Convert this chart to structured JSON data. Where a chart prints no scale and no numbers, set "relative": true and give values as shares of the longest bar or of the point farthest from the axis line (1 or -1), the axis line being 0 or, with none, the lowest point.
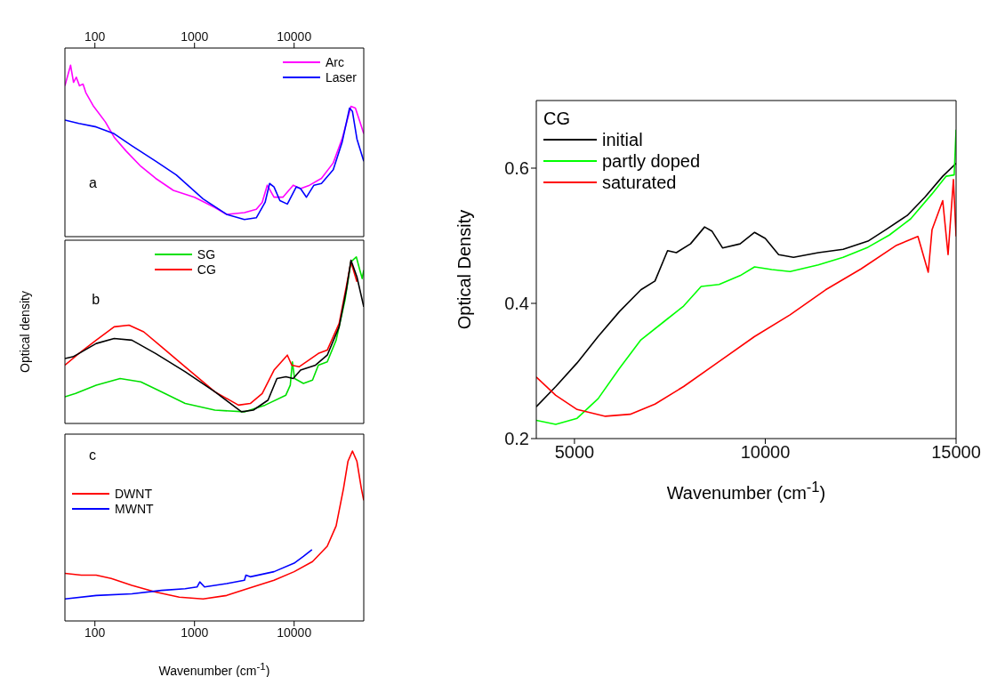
{
  "chart_data": [
    {
      "type": "line",
      "relative": true,
      "log": "x",
      "xlim": [
        50,
        50000
      ],
      "xticks": [
        100,
        1000,
        10000
      ],
      "tick_labels": "x",
      "legend": "top right",
      "annotations": [
        "a"
      ],
      "series": [
        {
          "name": "Arc",
          "color": "#ff00ff",
          "x": [
            50,
            57,
            61,
            65,
            70,
            76,
            81,
            97,
            127,
            156,
            205,
            289,
            407,
            613,
            1000,
            1600,
            2100,
            3170,
            4170,
            4780,
            5370,
            6280,
            7710,
            9790,
            11600,
            14300,
            18800,
            24700,
            30300,
            37200,
            41200,
            45700,
            50000
          ],
          "values": [
            0.88,
            1.0,
            0.9,
            0.93,
            0.88,
            0.89,
            0.84,
            0.76,
            0.67,
            0.58,
            0.5,
            0.41,
            0.34,
            0.27,
            0.23,
            0.17,
            0.13,
            0.14,
            0.16,
            0.2,
            0.3,
            0.23,
            0.23,
            0.3,
            0.28,
            0.3,
            0.34,
            0.43,
            0.57,
            0.76,
            0.75,
            0.67,
            0.6
          ]
        },
        {
          "name": "Laser",
          "color": "#0000ff",
          "x": [
            50,
            69,
            103,
            156,
            235,
            407,
            656,
            1220,
            2100,
            3170,
            4170,
            5110,
            5670,
            6280,
            7200,
            8550,
            10500,
            11600,
            13300,
            15800,
            18800,
            24700,
            30300,
            36000,
            38500,
            42700,
            50000
          ],
          "values": [
            0.68,
            0.66,
            0.64,
            0.6,
            0.53,
            0.44,
            0.36,
            0.22,
            0.13,
            0.1,
            0.11,
            0.2,
            0.31,
            0.29,
            0.21,
            0.19,
            0.29,
            0.28,
            0.23,
            0.3,
            0.31,
            0.39,
            0.55,
            0.75,
            0.73,
            0.57,
            0.44
          ]
        }
      ]
    },
    {
      "type": "line",
      "relative": true,
      "log": "x",
      "xlim": [
        50,
        50000
      ],
      "xticks": [
        100,
        1000,
        10000
      ],
      "tick_labels": false,
      "legend": "top",
      "ylabel": "Optical density",
      "annotations": [
        "b"
      ],
      "series": [
        {
          "name": "SG",
          "color": "#00e000",
          "x": [
            50,
            64,
            103,
            179,
            289,
            467,
            806,
            1600,
            3170,
            5110,
            8260,
            9150,
            9600,
            10100,
            12400,
            15300,
            17500,
            21500,
            26400,
            32400,
            37200,
            42100,
            45700,
            48200,
            50000
          ],
          "values": [
            0.16,
            0.18,
            0.23,
            0.27,
            0.25,
            0.19,
            0.12,
            0.08,
            0.07,
            0.11,
            0.17,
            0.23,
            0.37,
            0.27,
            0.24,
            0.26,
            0.35,
            0.37,
            0.5,
            0.74,
            0.97,
            1.0,
            0.92,
            0.87,
            0.92
          ]
        },
        {
          "name": "CG",
          "color": "#ff0000",
          "x": [
            50,
            69,
            103,
            156,
            220,
            309,
            467,
            806,
            1600,
            2760,
            3630,
            4780,
            6280,
            7450,
            8550,
            9470,
            11200,
            13300,
            17500,
            21500,
            28300,
            33600,
            37200,
            42700
          ],
          "values": [
            0.35,
            0.42,
            0.5,
            0.58,
            0.59,
            0.55,
            0.46,
            0.34,
            0.19,
            0.11,
            0.12,
            0.18,
            0.32,
            0.37,
            0.41,
            0.35,
            0.34,
            0.37,
            0.42,
            0.44,
            0.6,
            0.83,
            0.97,
            0.85
          ]
        },
        {
          "color": "#000000",
          "x": [
            50,
            60,
            69,
            103,
            156,
            235,
            407,
            806,
            1600,
            2960,
            3890,
            5470,
            6720,
            8260,
            9790,
            11600,
            16400,
            21500,
            28300,
            33600,
            37200,
            42700,
            50000
          ],
          "values": [
            0.39,
            0.4,
            0.42,
            0.48,
            0.51,
            0.5,
            0.42,
            0.31,
            0.19,
            0.07,
            0.08,
            0.14,
            0.27,
            0.28,
            0.27,
            0.32,
            0.35,
            0.41,
            0.58,
            0.81,
            0.98,
            0.88,
            0.7
          ]
        }
      ]
    },
    {
      "type": "line",
      "relative": true,
      "log": "x",
      "xlim": [
        50,
        50000
      ],
      "xticks": [
        100,
        1000,
        10000
      ],
      "tick_labels": "x",
      "legend": "left",
      "xlabel": "Wavenumber (cm$^{-1}$)",
      "annotations": [
        "c"
      ],
      "series": [
        {
          "name": "DWNT",
          "color": "#ff0000",
          "x": [
            50,
            73,
            103,
            146,
            235,
            407,
            703,
            1220,
            2100,
            3390,
            6280,
            10000,
            15300,
            21500,
            26400,
            31300,
            34700,
            38500,
            42700,
            47300,
            50000
          ],
          "values": [
            0.28,
            0.27,
            0.27,
            0.25,
            0.21,
            0.17,
            0.14,
            0.13,
            0.15,
            0.19,
            0.24,
            0.29,
            0.35,
            0.44,
            0.56,
            0.78,
            0.94,
            1.0,
            0.94,
            0.78,
            0.71
          ]
        },
        {
          "name": "MWNT",
          "color": "#0000ff",
          "x": [
            50,
            103,
            235,
            467,
            806,
            1060,
            1130,
            1260,
            2100,
            3170,
            3280,
            3630,
            6280,
            10000,
            12400,
            15100
          ],
          "values": [
            0.13,
            0.15,
            0.16,
            0.18,
            0.19,
            0.2,
            0.23,
            0.2,
            0.22,
            0.24,
            0.27,
            0.26,
            0.29,
            0.34,
            0.38,
            0.42
          ]
        }
      ]
    },
    {
      "type": "line",
      "xlim": [
        4000,
        15000
      ],
      "xticks": [
        5000,
        10000,
        15000
      ],
      "ylim": [
        0.2,
        0.7
      ],
      "yticks": [
        0.2,
        0.4,
        0.6
      ],
      "xlabel": "Wavenumber (cm$^{-1}$)",
      "ylabel": "Optical Density",
      "legend": "top left",
      "legend_title": "CG",
      "series": [
        {
          "name": "initial",
          "color": "#000000",
          "x": [
            4000,
            4510,
            5070,
            5620,
            6180,
            6740,
            7110,
            7440,
            7670,
            8040,
            8410,
            8600,
            8880,
            9340,
            9720,
            10000,
            10350,
            10740,
            11390,
            12040,
            12690,
            13160,
            13720,
            14180,
            14650,
            15000
          ],
          "values": [
            0.247,
            0.277,
            0.312,
            0.351,
            0.388,
            0.42,
            0.433,
            0.478,
            0.475,
            0.488,
            0.513,
            0.507,
            0.482,
            0.488,
            0.505,
            0.496,
            0.472,
            0.468,
            0.475,
            0.48,
            0.492,
            0.509,
            0.53,
            0.557,
            0.588,
            0.607
          ]
        },
        {
          "name": "partly doped",
          "color": "#00ff00",
          "x": [
            4000,
            4510,
            5070,
            5620,
            6180,
            6740,
            7390,
            7860,
            8320,
            8790,
            9340,
            9720,
            10170,
            10650,
            11390,
            12040,
            12690,
            13250,
            13810,
            14370,
            14740,
            14950,
            15000
          ],
          "values": [
            0.227,
            0.221,
            0.23,
            0.259,
            0.304,
            0.346,
            0.375,
            0.396,
            0.425,
            0.428,
            0.441,
            0.454,
            0.45,
            0.447,
            0.457,
            0.468,
            0.483,
            0.501,
            0.525,
            0.562,
            0.588,
            0.59,
            0.657
          ]
        },
        {
          "name": "saturated",
          "color": "#ff0000",
          "x": [
            4000,
            4510,
            5070,
            5810,
            6460,
            7110,
            7860,
            8790,
            9720,
            10650,
            11580,
            12510,
            13440,
            14000,
            14270,
            14370,
            14650,
            14790,
            14930,
            15000
          ],
          "values": [
            0.291,
            0.264,
            0.243,
            0.233,
            0.236,
            0.251,
            0.277,
            0.314,
            0.351,
            0.383,
            0.42,
            0.451,
            0.486,
            0.499,
            0.446,
            0.509,
            0.552,
            0.472,
            0.583,
            0.499
          ]
        }
      ]
    }
  ]
}
